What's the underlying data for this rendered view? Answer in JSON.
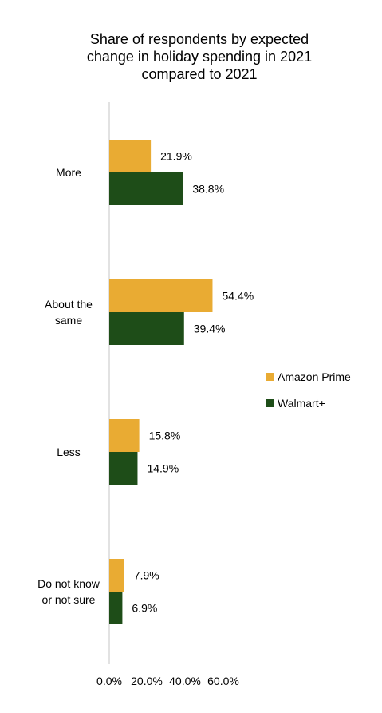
{
  "chart_data": {
    "type": "bar",
    "orientation": "horizontal",
    "title_lines": [
      "Share of respondents by expected",
      "change in holiday spending in 2021",
      "compared to 2021"
    ],
    "categories": [
      [
        "More"
      ],
      [
        "About the",
        "same"
      ],
      [
        "Less"
      ],
      [
        "Do not know",
        "or not sure"
      ]
    ],
    "series": [
      {
        "name": "Amazon Prime",
        "color": "#E9AB33",
        "values": [
          21.9,
          54.4,
          15.8,
          7.9
        ]
      },
      {
        "name": "Walmart+",
        "color": "#1E4D18",
        "values": [
          38.8,
          39.4,
          14.9,
          6.9
        ]
      }
    ],
    "value_labels": [
      [
        "21.9%",
        "54.4%",
        "15.8%",
        "7.9%"
      ],
      [
        "38.8%",
        "39.4%",
        "14.9%",
        "6.9%"
      ]
    ],
    "x_ticks": [
      "0.0%",
      "20.0%",
      "40.0%",
      "60.0%"
    ],
    "x_tick_values": [
      0,
      20,
      40,
      60
    ],
    "xlim": [
      0,
      60
    ],
    "grid": false,
    "legend_position": "right"
  }
}
